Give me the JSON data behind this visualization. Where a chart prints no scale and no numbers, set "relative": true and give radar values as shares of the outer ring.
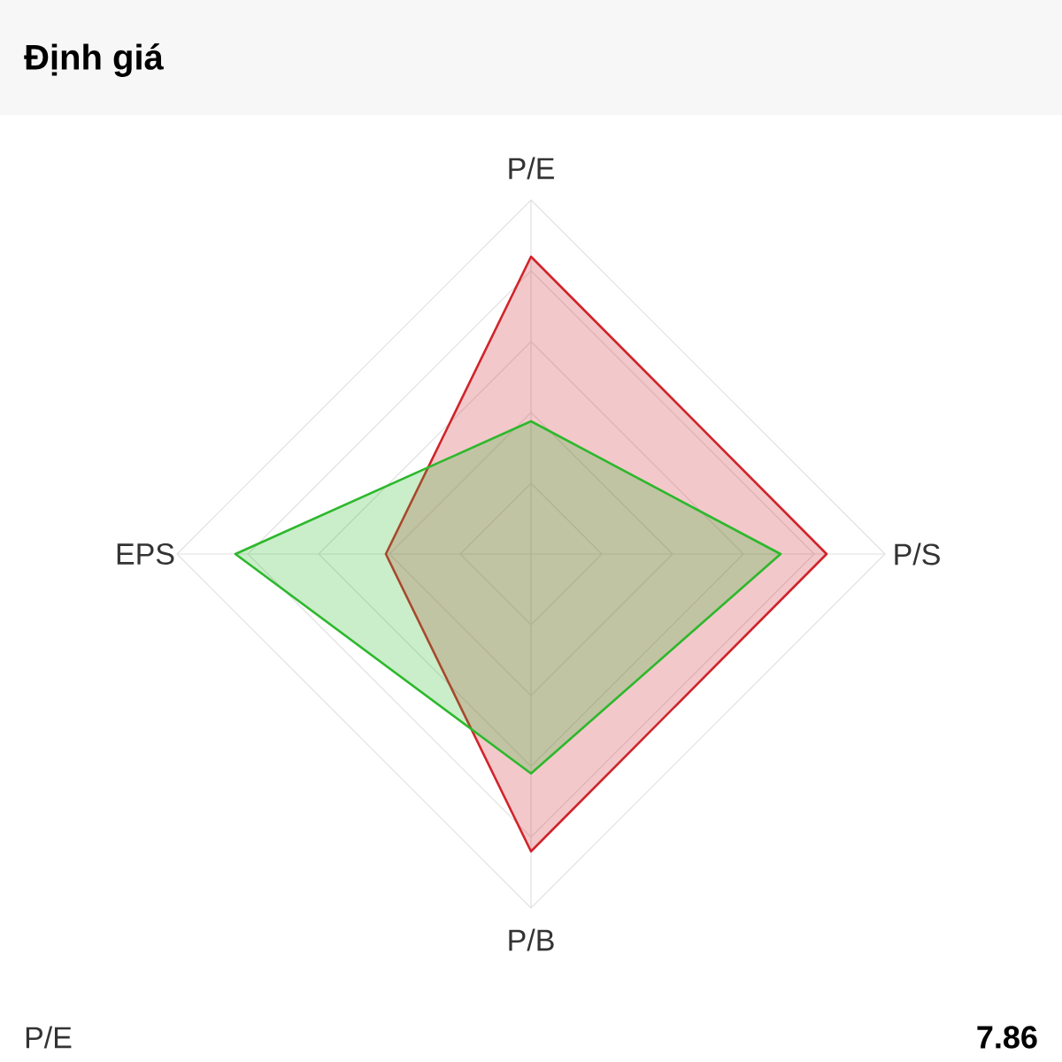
{
  "chart_data": {
    "type": "radar",
    "title": "Định giá",
    "categories": [
      "P/E",
      "P/S",
      "P/B",
      "EPS"
    ],
    "relative": true,
    "grid": true,
    "series": [
      {
        "color": "#d0242b",
        "values": [
          0.84,
          0.835,
          0.84,
          0.41
        ]
      },
      {
        "color": "#2db82d",
        "values": [
          0.375,
          0.705,
          0.62,
          0.835
        ]
      }
    ],
    "annotations": [
      "P/E",
      "7.86"
    ]
  }
}
